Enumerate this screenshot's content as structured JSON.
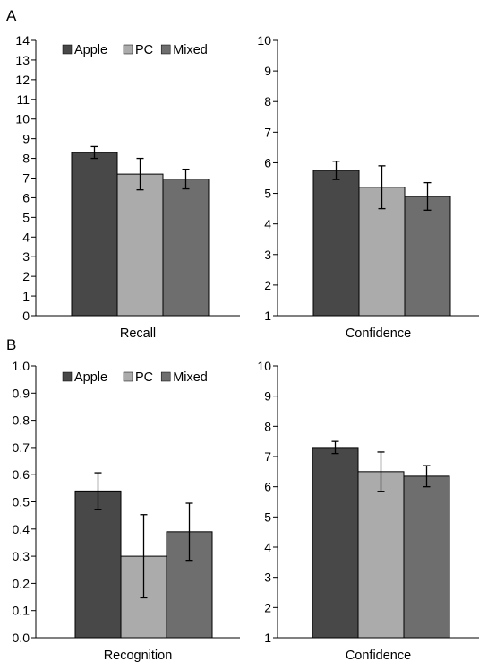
{
  "panels": [
    {
      "letter": "A"
    },
    {
      "letter": "B"
    }
  ],
  "colors": {
    "Apple": "#484848",
    "PC": "#ababab",
    "Mixed": "#6e6e6e"
  },
  "chart_data": [
    {
      "type": "bar",
      "panel": "A",
      "xlabel": "Recall",
      "series": [
        {
          "name": "Apple",
          "values": [
            8.3
          ],
          "error": [
            0.3
          ]
        },
        {
          "name": "PC",
          "values": [
            7.2
          ],
          "error": [
            0.8
          ]
        },
        {
          "name": "Mixed",
          "values": [
            6.95
          ],
          "error": [
            0.5
          ]
        }
      ],
      "ylim": [
        0,
        14
      ],
      "yticks": [
        0,
        1,
        2,
        3,
        4,
        5,
        6,
        7,
        8,
        9,
        10,
        11,
        12,
        13,
        14
      ],
      "ytick_labels": [
        "0",
        "1",
        "2",
        "3",
        "4",
        "5",
        "6",
        "7",
        "8",
        "9",
        "10",
        "11",
        "12",
        "13",
        "14"
      ],
      "legend": "top-left",
      "grid": false
    },
    {
      "type": "bar",
      "panel": "A",
      "xlabel": "Confidence",
      "series": [
        {
          "name": "Apple",
          "values": [
            5.75
          ],
          "error": [
            0.3
          ]
        },
        {
          "name": "PC",
          "values": [
            5.2
          ],
          "error": [
            0.7
          ]
        },
        {
          "name": "Mixed",
          "values": [
            4.9
          ],
          "error": [
            0.45
          ]
        }
      ],
      "ylim": [
        1,
        10
      ],
      "yticks": [
        1,
        2,
        3,
        4,
        5,
        6,
        7,
        8,
        9,
        10
      ],
      "ytick_labels": [
        "1",
        "2",
        "3",
        "4",
        "5",
        "6",
        "7",
        "8",
        "9",
        "10"
      ],
      "legend": "none",
      "grid": false
    },
    {
      "type": "bar",
      "panel": "B",
      "xlabel": "Recognition",
      "series": [
        {
          "name": "Apple",
          "values": [
            0.54
          ],
          "error": [
            0.067
          ]
        },
        {
          "name": "PC",
          "values": [
            0.3
          ],
          "error": [
            0.153
          ]
        },
        {
          "name": "Mixed",
          "values": [
            0.39
          ],
          "error": [
            0.105
          ]
        }
      ],
      "ylim": [
        0,
        1
      ],
      "yticks": [
        0,
        0.1,
        0.2,
        0.3,
        0.4,
        0.5,
        0.6,
        0.7,
        0.8,
        0.9,
        1.0
      ],
      "ytick_labels": [
        "0.0",
        "0.1",
        "0.2",
        "0.3",
        "0.4",
        "0.5",
        "0.6",
        "0.7",
        "0.8",
        "0.9",
        "1.0"
      ],
      "legend": "top-left",
      "grid": false
    },
    {
      "type": "bar",
      "panel": "B",
      "xlabel": "Confidence",
      "series": [
        {
          "name": "Apple",
          "values": [
            7.3
          ],
          "error": [
            0.2
          ]
        },
        {
          "name": "PC",
          "values": [
            6.5
          ],
          "error": [
            0.65
          ]
        },
        {
          "name": "Mixed",
          "values": [
            6.35
          ],
          "error": [
            0.35
          ]
        }
      ],
      "ylim": [
        1,
        10
      ],
      "yticks": [
        1,
        2,
        3,
        4,
        5,
        6,
        7,
        8,
        9,
        10
      ],
      "ytick_labels": [
        "1",
        "2",
        "3",
        "4",
        "5",
        "6",
        "7",
        "8",
        "9",
        "10"
      ],
      "legend": "none",
      "grid": false
    }
  ]
}
